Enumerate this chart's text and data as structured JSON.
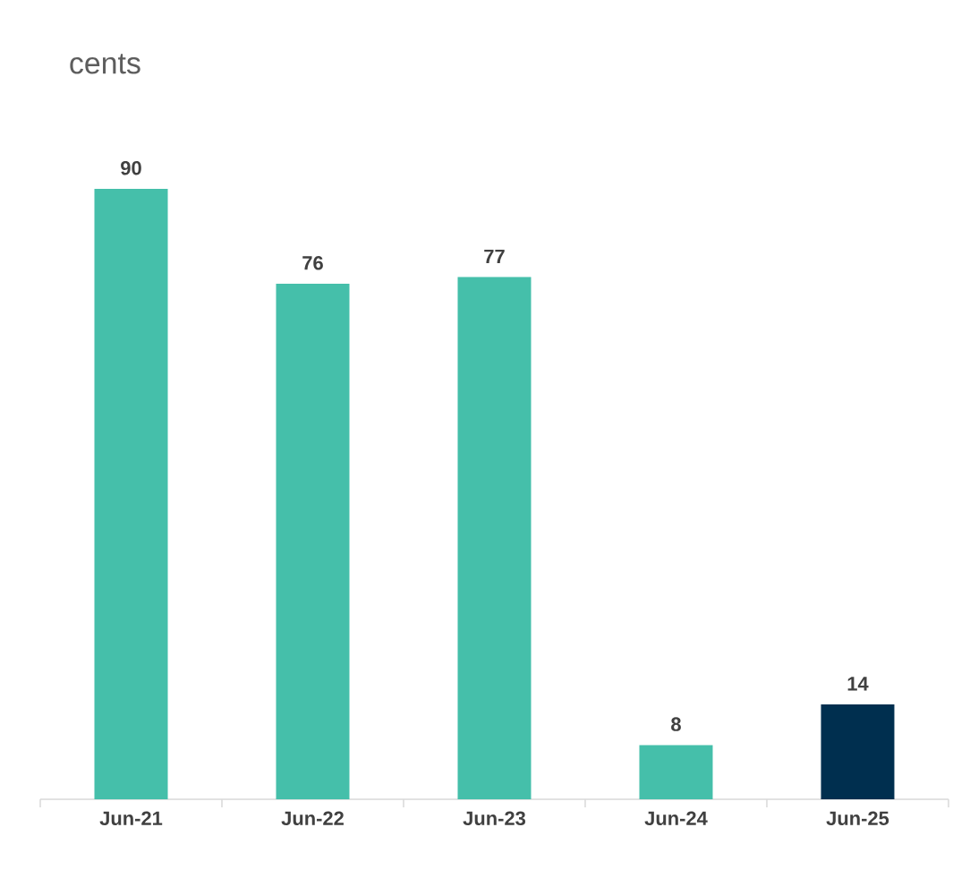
{
  "chart_data": {
    "type": "bar",
    "ylabel": "cents",
    "categories": [
      "Jun-21",
      "Jun-22",
      "Jun-23",
      "Jun-24",
      "Jun-25"
    ],
    "values": [
      90,
      76,
      77,
      8,
      14
    ],
    "colors": [
      "#45bfaa",
      "#45bfaa",
      "#45bfaa",
      "#45bfaa",
      "#002f4f"
    ],
    "data_labels": true
  }
}
